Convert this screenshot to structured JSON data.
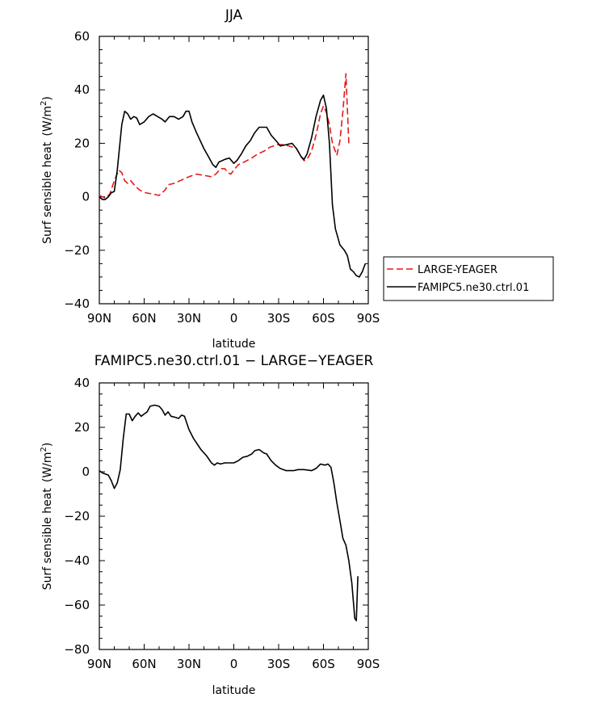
{
  "chart_data": [
    {
      "type": "line",
      "title": "JJA",
      "xlabel": "latitude",
      "ylabel_main": "Surf sensible heat",
      "ylabel_units": "(W/m",
      "ylabel_sup": "2",
      "ylabel_close": ")",
      "xlim": [
        90,
        -90
      ],
      "ylim": [
        -40,
        60
      ],
      "xticks": [
        90,
        60,
        30,
        0,
        -30,
        -60,
        -90
      ],
      "xticklabels": [
        "90N",
        "60N",
        "30N",
        "0",
        "30S",
        "60S",
        "90S"
      ],
      "yticks": [
        -40,
        -20,
        0,
        20,
        40,
        60
      ],
      "yticklabels": [
        "−40",
        "−20",
        "0",
        "20",
        "40",
        "60"
      ],
      "legend": "right",
      "series": [
        {
          "name": "LARGE-YEAGER",
          "color": "#e41a1c",
          "dash": "dashed",
          "points": [
            [
              90,
              0.5
            ],
            [
              86,
              -0.5
            ],
            [
              83,
              1
            ],
            [
              80,
              6
            ],
            [
              77,
              10
            ],
            [
              75,
              9
            ],
            [
              73,
              6
            ],
            [
              71,
              5
            ],
            [
              69,
              6
            ],
            [
              66,
              4
            ],
            [
              63,
              2.5
            ],
            [
              59,
              1.5
            ],
            [
              54,
              1
            ],
            [
              50,
              0.5
            ],
            [
              46,
              2.5
            ],
            [
              44,
              4.5
            ],
            [
              40,
              5
            ],
            [
              36,
              6
            ],
            [
              30,
              7.5
            ],
            [
              25,
              8.5
            ],
            [
              20,
              8
            ],
            [
              15,
              7.5
            ],
            [
              12,
              8.5
            ],
            [
              9,
              10.5
            ],
            [
              6,
              10.5
            ],
            [
              4,
              9
            ],
            [
              2,
              8.5
            ],
            [
              0,
              10
            ],
            [
              -3,
              12
            ],
            [
              -7,
              13
            ],
            [
              -12,
              14.5
            ],
            [
              -16,
              16
            ],
            [
              -20,
              17
            ],
            [
              -24,
              18.5
            ],
            [
              -29,
              19.5
            ],
            [
              -33,
              19.5
            ],
            [
              -37,
              19
            ],
            [
              -42,
              18
            ],
            [
              -45,
              15
            ],
            [
              -47,
              13.5
            ],
            [
              -49,
              14
            ],
            [
              -52,
              17
            ],
            [
              -55,
              23
            ],
            [
              -58,
              31
            ],
            [
              -60,
              34
            ],
            [
              -62,
              31.5
            ],
            [
              -64,
              27
            ],
            [
              -66,
              20
            ],
            [
              -69,
              15.5
            ],
            [
              -71,
              21
            ],
            [
              -73,
              32
            ],
            [
              -75,
              46
            ],
            [
              -77,
              20
            ]
          ]
        },
        {
          "name": "FAMIPC5.ne30.ctrl.01",
          "color": "#000000",
          "dash": "solid",
          "points": [
            [
              90,
              0
            ],
            [
              88,
              -1
            ],
            [
              86,
              -1
            ],
            [
              84,
              0
            ],
            [
              82,
              1.5
            ],
            [
              80,
              2
            ],
            [
              78,
              10
            ],
            [
              75,
              27
            ],
            [
              73,
              32
            ],
            [
              71,
              31
            ],
            [
              69,
              29
            ],
            [
              67,
              30
            ],
            [
              65,
              29.5
            ],
            [
              63,
              27
            ],
            [
              60,
              28
            ],
            [
              57,
              30
            ],
            [
              54,
              31
            ],
            [
              51,
              30
            ],
            [
              48,
              29
            ],
            [
              46,
              28
            ],
            [
              43,
              30
            ],
            [
              40,
              30
            ],
            [
              37,
              29
            ],
            [
              34,
              30
            ],
            [
              32,
              32
            ],
            [
              30,
              32
            ],
            [
              28,
              28
            ],
            [
              25,
              24
            ],
            [
              20,
              18
            ],
            [
              17,
              15
            ],
            [
              14,
              12
            ],
            [
              12,
              11
            ],
            [
              10,
              13
            ],
            [
              6,
              14
            ],
            [
              3,
              14.5
            ],
            [
              0,
              12.5
            ],
            [
              -2,
              13.5
            ],
            [
              -5,
              16
            ],
            [
              -8,
              19
            ],
            [
              -11,
              21
            ],
            [
              -14,
              24
            ],
            [
              -17,
              26
            ],
            [
              -22,
              26
            ],
            [
              -25,
              23
            ],
            [
              -29,
              20.5
            ],
            [
              -31,
              19
            ],
            [
              -35,
              19.5
            ],
            [
              -39,
              20
            ],
            [
              -42,
              18
            ],
            [
              -45,
              15
            ],
            [
              -47,
              14
            ],
            [
              -49,
              16
            ],
            [
              -52,
              22
            ],
            [
              -55,
              30
            ],
            [
              -58,
              36
            ],
            [
              -60,
              38
            ],
            [
              -62,
              33
            ],
            [
              -64,
              20
            ],
            [
              -66,
              -3
            ],
            [
              -68,
              -12
            ],
            [
              -71,
              -18
            ],
            [
              -74,
              -20
            ],
            [
              -76,
              -22
            ],
            [
              -78,
              -27
            ],
            [
              -80,
              -28
            ],
            [
              -82,
              -29.5
            ],
            [
              -84,
              -30
            ],
            [
              -86,
              -28
            ],
            [
              -88,
              -25
            ]
          ]
        }
      ]
    },
    {
      "type": "line",
      "title": "FAMIPC5.ne30.ctrl.01  −  LARGE−YEAGER",
      "xlabel": "latitude",
      "ylabel_main": "Surf sensible heat",
      "ylabel_units": "(W/m",
      "ylabel_sup": "2",
      "ylabel_close": ")",
      "xlim": [
        90,
        -90
      ],
      "ylim": [
        -80,
        40
      ],
      "xticks": [
        90,
        60,
        30,
        0,
        -30,
        -60,
        -90
      ],
      "xticklabels": [
        "90N",
        "60N",
        "30N",
        "0",
        "30S",
        "60S",
        "90S"
      ],
      "yticks": [
        -80,
        -60,
        -40,
        -20,
        0,
        20,
        40
      ],
      "yticklabels": [
        "−80",
        "−60",
        "−40",
        "−20",
        "0",
        "20",
        "40"
      ],
      "series": [
        {
          "color": "#000000",
          "dash": "solid",
          "points": [
            [
              90,
              0.5
            ],
            [
              88,
              -0.5
            ],
            [
              86,
              -1
            ],
            [
              84,
              -1.5
            ],
            [
              82,
              -4
            ],
            [
              80,
              -7.5
            ],
            [
              78,
              -5
            ],
            [
              76,
              1
            ],
            [
              74,
              15
            ],
            [
              72,
              26
            ],
            [
              70,
              26
            ],
            [
              68,
              23
            ],
            [
              66,
              25
            ],
            [
              64,
              26.5
            ],
            [
              62,
              25
            ],
            [
              60,
              26
            ],
            [
              58,
              27
            ],
            [
              56,
              29.5
            ],
            [
              53,
              30
            ],
            [
              50,
              29.5
            ],
            [
              48,
              28
            ],
            [
              46,
              25.5
            ],
            [
              44,
              27
            ],
            [
              42,
              25
            ],
            [
              39,
              24.5
            ],
            [
              37,
              24
            ],
            [
              35,
              25.5
            ],
            [
              33,
              25
            ],
            [
              30,
              19
            ],
            [
              27,
              15
            ],
            [
              22,
              10
            ],
            [
              18,
              7
            ],
            [
              15,
              4
            ],
            [
              13,
              3
            ],
            [
              11,
              4
            ],
            [
              9,
              3.5
            ],
            [
              6,
              4
            ],
            [
              0,
              4
            ],
            [
              -3,
              5
            ],
            [
              -6,
              6.5
            ],
            [
              -9,
              7
            ],
            [
              -12,
              8
            ],
            [
              -14,
              9.5
            ],
            [
              -17,
              10
            ],
            [
              -20,
              8.5
            ],
            [
              -22,
              8
            ],
            [
              -25,
              5
            ],
            [
              -28,
              3
            ],
            [
              -31,
              1.5
            ],
            [
              -35,
              0.5
            ],
            [
              -40,
              0.5
            ],
            [
              -43,
              1
            ],
            [
              -47,
              1
            ],
            [
              -52,
              0.5
            ],
            [
              -55,
              1.5
            ],
            [
              -58,
              3.5
            ],
            [
              -61,
              3
            ],
            [
              -63,
              3.5
            ],
            [
              -65,
              2
            ],
            [
              -67,
              -5
            ],
            [
              -69,
              -14
            ],
            [
              -71,
              -22
            ],
            [
              -73,
              -30
            ],
            [
              -75,
              -33
            ],
            [
              -77,
              -40
            ],
            [
              -79,
              -50
            ],
            [
              -81,
              -66
            ],
            [
              -82,
              -67
            ],
            [
              -83,
              -47
            ]
          ]
        }
      ]
    }
  ]
}
